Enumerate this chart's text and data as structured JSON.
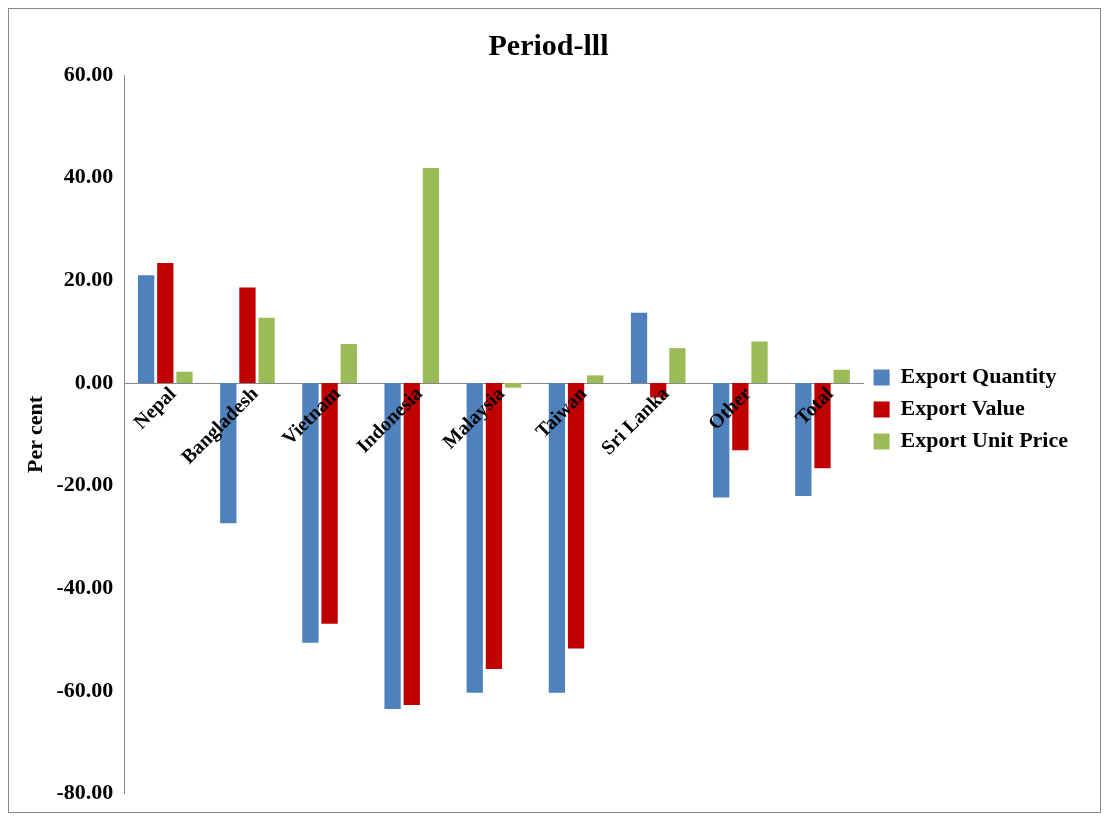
{
  "chart_data": {
    "type": "bar",
    "title": "Period-lll",
    "ylabel": "Per cent",
    "categories": [
      "Nepal",
      "Bangladesh",
      "Vietnam",
      "Indonesia",
      "Malaysia",
      "Taiwan",
      "Sri Lanka",
      "Other",
      "Total"
    ],
    "series": [
      {
        "name": "Export Quantity",
        "color": "#4f81bd",
        "values": [
          21.0,
          -27.3,
          -50.6,
          -63.5,
          -60.3,
          -60.3,
          13.7,
          -22.3,
          -22.0
        ]
      },
      {
        "name": "Export Value",
        "color": "#c00000",
        "values": [
          23.4,
          18.6,
          -46.9,
          -62.7,
          -55.7,
          -51.7,
          -2.8,
          -13.1,
          -16.6
        ]
      },
      {
        "name": "Export Unit Price",
        "color": "#9bbb59",
        "values": [
          2.2,
          12.7,
          7.6,
          41.9,
          -0.9,
          1.5,
          6.8,
          8.1,
          2.6
        ]
      }
    ],
    "ylim": [
      -80,
      60
    ],
    "yticks": [
      {
        "value": -80,
        "label": "-80.00"
      },
      {
        "value": -60,
        "label": "-60.00"
      },
      {
        "value": -40,
        "label": "-40.00"
      },
      {
        "value": -20,
        "label": "-20.00"
      },
      {
        "value": 0,
        "label": "0.00"
      },
      {
        "value": 20,
        "label": "20.00"
      },
      {
        "value": 40,
        "label": "40.00"
      },
      {
        "value": 60,
        "label": "60.00"
      }
    ],
    "grid": false,
    "legend": "right"
  }
}
